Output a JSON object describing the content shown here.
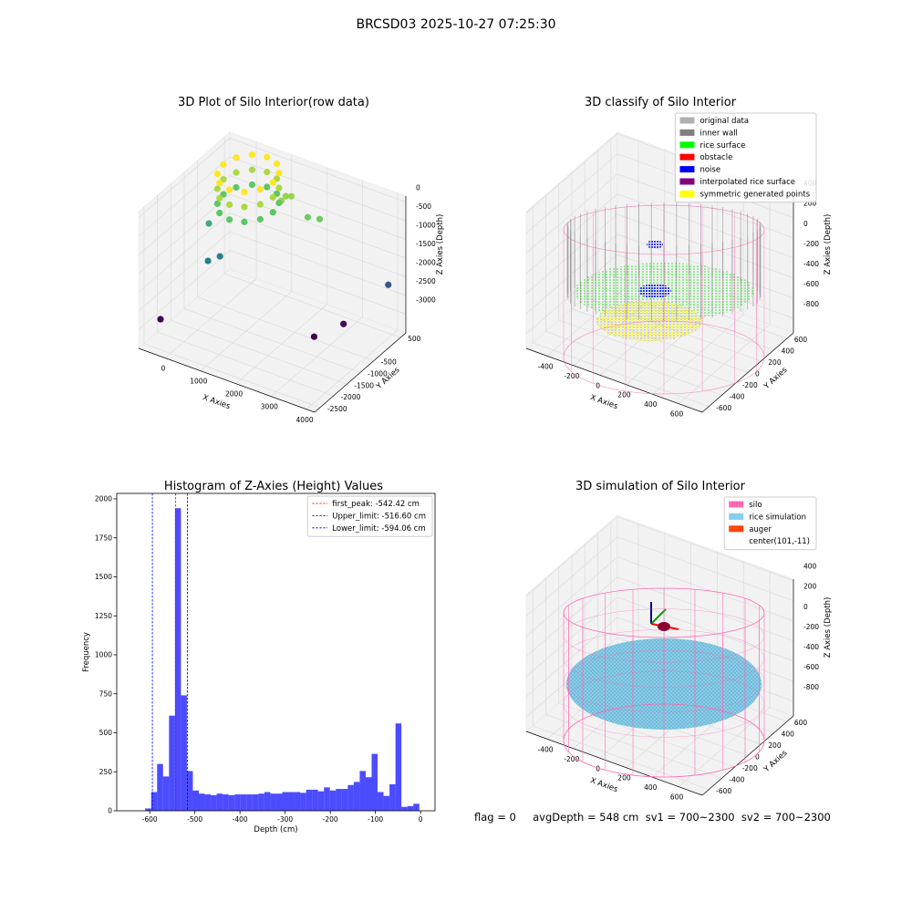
{
  "suptitle": "BRCSD03 2025-10-27 07:25:30",
  "footer": "flag = 0     avgDepth = 548 cm  sv1 = 700~2300  sv2 = 700~2300",
  "chart_data": [
    {
      "type": "scatter3d",
      "title": "3D Plot of Silo Interior(row data)",
      "xlabel": "X Axies",
      "ylabel": "Y Axies",
      "zlabel": "Z Axies (Depth)",
      "colormap": "viridis",
      "x": [
        -639,
        85,
        220,
        -240,
        2020,
        2300,
        1285,
        1270,
        1380,
        3805,
        3210,
        2830,
        1125,
        1031,
        775,
        425,
        75,
        -181,
        -275,
        -181,
        75,
        425,
        775,
        1031,
        1125,
        1031,
        775,
        425,
        75,
        -181,
        -275,
        -181,
        75,
        425,
        775,
        1031,
        1125,
        1031,
        775,
        425,
        75,
        -181,
        -275,
        -181,
        75,
        425,
        775,
        1031
      ],
      "y": [
        -2030,
        -1214,
        -946,
        -752,
        -45,
        30,
        -65,
        125,
        185,
        605,
        -279,
        -874,
        -163,
        187,
        443,
        537,
        443,
        187,
        -163,
        -513,
        -769,
        -863,
        -769,
        -513,
        -163,
        187,
        443,
        537,
        443,
        187,
        -163,
        -513,
        -769,
        -863,
        -769,
        -513,
        -163,
        187,
        443,
        537,
        443,
        187,
        -163,
        -513,
        -769,
        -863,
        -769,
        -513
      ],
      "z": [
        -3100,
        -1800,
        -1800,
        -1200,
        -700,
        -700,
        -500,
        -500,
        -500,
        -2300,
        -3000,
        -3100,
        -800,
        -800,
        -800,
        -800,
        -800,
        -800,
        -800,
        -800,
        -800,
        -800,
        -800,
        -800,
        -400,
        -400,
        -400,
        -400,
        -400,
        -400,
        -400,
        -400,
        -400,
        -400,
        -400,
        -400,
        0,
        0,
        0,
        0,
        0,
        0,
        0,
        0,
        0,
        0,
        0,
        0
      ],
      "xlim": [
        -750,
        4230
      ],
      "ylim": [
        -2700,
        700
      ],
      "zlim": [
        -3500,
        160
      ],
      "xticks": [
        0,
        1000,
        2000,
        3000,
        4000
      ],
      "yticks": [
        -2500,
        -2000,
        -1500,
        -1000,
        -500,
        500
      ],
      "zticks": [
        -3000,
        -2500,
        -2000,
        -1500,
        -1000,
        -500,
        0
      ]
    },
    {
      "type": "scatter3d",
      "title": "3D classify of Silo Interior",
      "xlabel": "X Axies",
      "ylabel": "Y Axies",
      "zlabel": "Z Axies (Depth)",
      "legend": [
        {
          "name": "original data",
          "color": "#b0b0b0"
        },
        {
          "name": "inner wall",
          "color": "#808080"
        },
        {
          "name": "rice surface",
          "color": "#00ff00"
        },
        {
          "name": "obstacle",
          "color": "#ff0000"
        },
        {
          "name": "noise",
          "color": "#0000ff"
        },
        {
          "name": "interpolated rice surface",
          "color": "#800080"
        },
        {
          "name": "symmetric generated points",
          "color": "#ffff00"
        }
      ],
      "legend_loc": "upper right",
      "xlim": [
        -560,
        780
      ],
      "ylim": [
        -700,
        700
      ],
      "zlim": [
        -945,
        415
      ],
      "xticks": [
        -400,
        -200,
        0,
        200,
        400,
        600
      ],
      "yticks": [
        -600,
        -400,
        -200,
        0,
        200,
        400,
        600
      ],
      "zticks": [
        -800,
        -600,
        -400,
        -200,
        0,
        200,
        400
      ]
    },
    {
      "type": "histogram",
      "title": "Histogram of Z-Axies (Height) Values",
      "xlabel": "Depth (cm)",
      "ylabel": "Frequency",
      "color": "#0000ff",
      "alpha": 0.7,
      "bins": [
        -610.0,
        -596.8,
        -583.6,
        -570.4,
        -557.2,
        -544.0,
        -530.8,
        -517.6,
        -504.4,
        -491.2,
        -478.0,
        -464.8,
        -451.6,
        -438.4,
        -425.2,
        -412.0,
        -398.8,
        -385.6,
        -372.4,
        -359.2,
        -346.0,
        -332.8,
        -319.6,
        -306.4,
        -293.2,
        -280.0,
        -266.8,
        -253.6,
        -240.4,
        -227.2,
        -214.0,
        -200.8,
        -187.6,
        -174.4,
        -161.2,
        -148.0,
        -134.8,
        -121.6,
        -108.4,
        -95.2,
        -82.0,
        -68.8,
        -55.6,
        -42.4,
        -29.2,
        -16.0,
        -2.8
      ],
      "counts": [
        15,
        120,
        300,
        220,
        610,
        1940,
        740,
        255,
        130,
        110,
        105,
        100,
        110,
        105,
        100,
        105,
        105,
        105,
        105,
        110,
        120,
        110,
        110,
        120,
        120,
        120,
        115,
        135,
        135,
        125,
        150,
        130,
        140,
        140,
        165,
        185,
        255,
        215,
        365,
        120,
        95,
        170,
        560,
        25,
        30,
        45
      ],
      "vlines": [
        {
          "value": -542.42,
          "label": "first_peak: -542.42 cm",
          "color": "#ff0000"
        },
        {
          "value": -516.6,
          "label": "Upper_limit: -516.60 cm",
          "color": "#00008b"
        },
        {
          "value": -594.06,
          "label": "Lower_limit: -594.06 cm",
          "color": "#0000ff"
        }
      ],
      "legend_loc": "upper right",
      "xlim": [
        -673,
        32
      ],
      "ylim": [
        0,
        2035
      ],
      "xticks": [
        -600,
        -500,
        -400,
        -300,
        -200,
        -100,
        0
      ],
      "yticks": [
        0,
        250,
        500,
        750,
        1000,
        1250,
        1500,
        1750,
        2000
      ]
    },
    {
      "type": "scatter3d",
      "title": "3D simulation of Silo Interior",
      "xlabel": "X Axies",
      "ylabel": "Y Axies",
      "zlabel": "Z Axies (Depth)",
      "legend": [
        {
          "name": "silo",
          "color": "#ff69b4"
        },
        {
          "name": "rice simulation",
          "color": "#87ceeb"
        },
        {
          "name": "auger",
          "color": "#ff4500"
        },
        {
          "name": "center(101,-11)"
        }
      ],
      "legend_loc": "upper right",
      "xlim": [
        -560,
        780
      ],
      "ylim": [
        -700,
        700
      ],
      "zlim": [
        -945,
        415
      ],
      "xticks": [
        -400,
        -200,
        0,
        200,
        400,
        600
      ],
      "yticks": [
        -600,
        -400,
        -200,
        0,
        200,
        400,
        600
      ],
      "zticks": [
        -800,
        -600,
        -400,
        -200,
        0,
        200,
        400
      ]
    }
  ]
}
